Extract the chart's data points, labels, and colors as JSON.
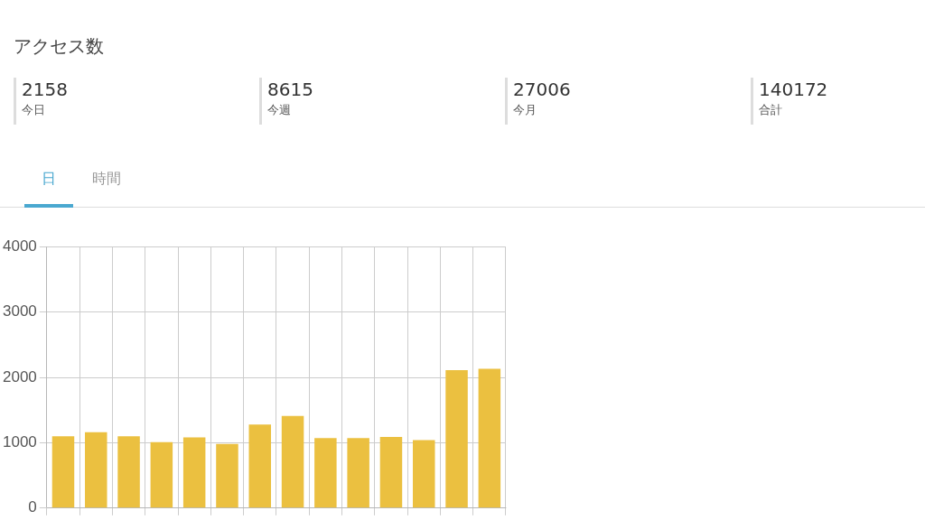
{
  "chart_data": [
    {
      "type": "other",
      "title": "アクセス数",
      "annotations": [
        "2158",
        "今日",
        "8615",
        "今週",
        "27006",
        "今月",
        "140172",
        "合計"
      ]
    },
    {
      "type": "bar",
      "categories": [
        null,
        null,
        null,
        null,
        null,
        null,
        null,
        null,
        null,
        null,
        null,
        null,
        null,
        null
      ],
      "values": [
        1100,
        1160,
        1100,
        1010,
        1080,
        980,
        1280,
        1410,
        1070,
        1070,
        1090,
        1040,
        2110,
        2130
      ],
      "color": "#ebc040",
      "ylim": [
        0,
        4000
      ],
      "yticks": [
        0,
        1000,
        2000,
        3000,
        4000
      ],
      "grid": true,
      "legend": false,
      "tick_labels": "y",
      "annotations": [
        "日",
        "時間"
      ]
    }
  ]
}
